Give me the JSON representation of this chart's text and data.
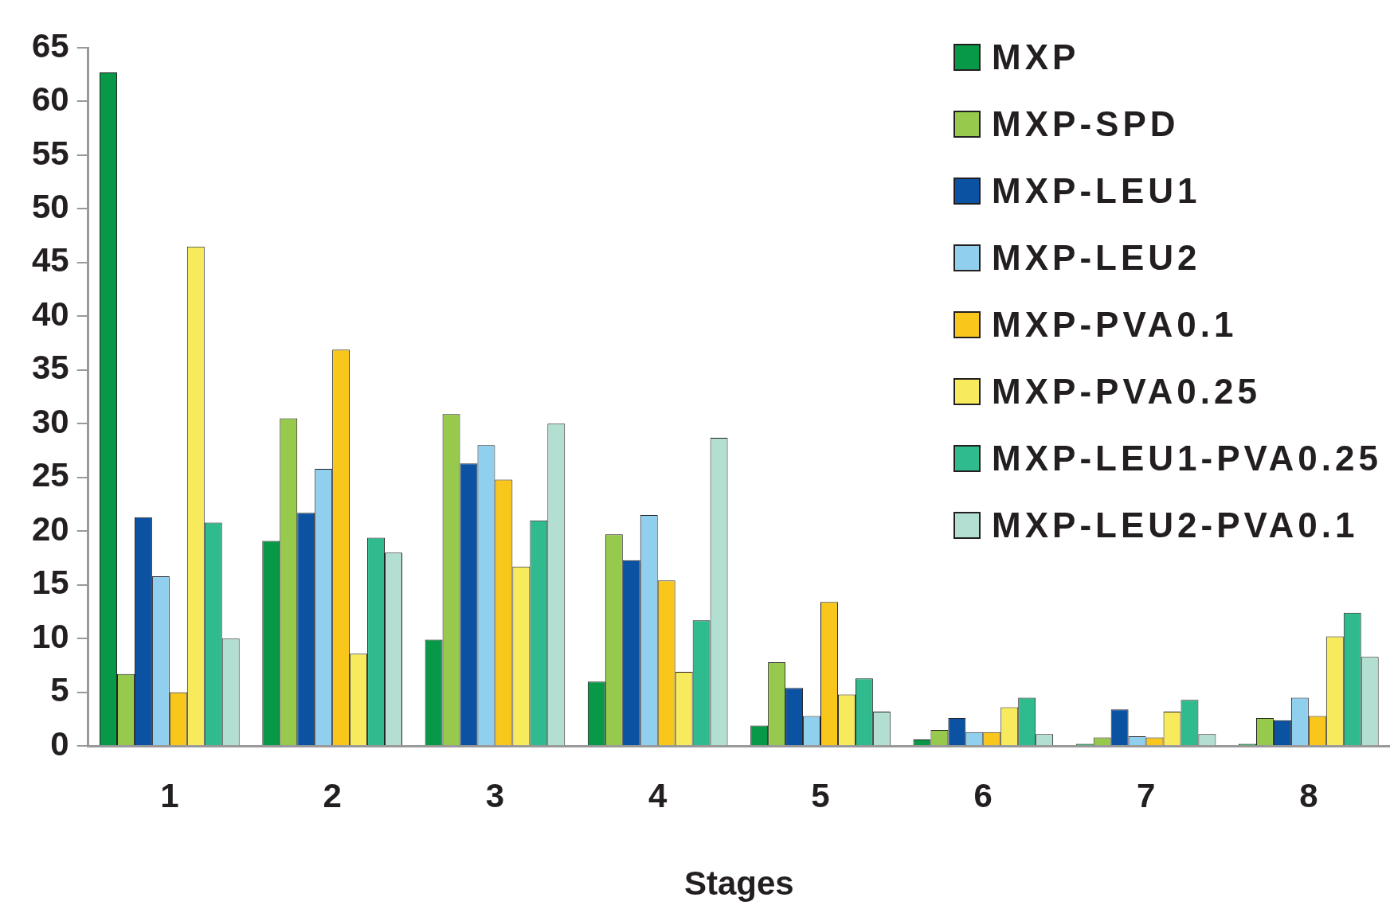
{
  "chart_data": {
    "type": "bar",
    "xlabel": "Stages",
    "categories": [
      "1",
      "2",
      "3",
      "4",
      "5",
      "6",
      "7",
      "8"
    ],
    "series": [
      {
        "name": "MXP",
        "color": "#079848",
        "values": [
          62.7,
          19.1,
          9.9,
          6.0,
          1.9,
          0.6,
          0.2,
          0.2
        ]
      },
      {
        "name": "MXP-SPD",
        "color": "#97c94c",
        "values": [
          6.7,
          30.5,
          30.9,
          19.7,
          7.8,
          1.5,
          0.8,
          2.6
        ]
      },
      {
        "name": "MXP-LEU1",
        "color": "#0b52a3",
        "values": [
          21.3,
          21.7,
          26.3,
          17.3,
          5.4,
          2.6,
          3.4,
          2.4
        ]
      },
      {
        "name": "MXP-LEU2",
        "color": "#90d0ee",
        "values": [
          15.8,
          25.8,
          28.0,
          21.5,
          2.8,
          1.3,
          0.9,
          4.5
        ]
      },
      {
        "name": "MXP-PVA0.1",
        "color": "#f9c61c",
        "values": [
          5.0,
          36.9,
          24.8,
          15.4,
          13.4,
          1.3,
          0.8,
          2.8
        ]
      },
      {
        "name": "MXP-PVA0.25",
        "color": "#f7ea5c",
        "values": [
          46.5,
          8.6,
          16.7,
          6.9,
          4.8,
          3.6,
          3.2,
          10.2
        ]
      },
      {
        "name": "MXP-LEU1-PVA0.25",
        "color": "#2fbb8e",
        "values": [
          20.8,
          19.4,
          21.0,
          11.7,
          6.3,
          4.5,
          4.3,
          12.4
        ]
      },
      {
        "name": "MXP-LEU2-PVA0.1",
        "color": "#b2dfd1",
        "values": [
          10.0,
          18.0,
          30.0,
          28.7,
          3.2,
          1.1,
          1.1,
          8.3
        ]
      }
    ],
    "ylim": [
      0,
      65
    ],
    "yticks": [
      0,
      5,
      10,
      15,
      20,
      25,
      30,
      35,
      40,
      45,
      50,
      55,
      60,
      65
    ],
    "grid": false,
    "legend": "top right"
  }
}
